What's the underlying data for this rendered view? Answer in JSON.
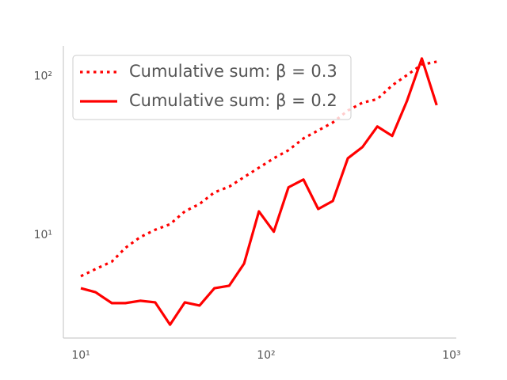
{
  "chart_data": {
    "type": "line",
    "xscale": "log",
    "yscale": "log",
    "grid": false,
    "legend": "upper left",
    "xlim": [
      8.05,
      1062
    ],
    "ylim": [
      2.24,
      156
    ],
    "xticks": [
      {
        "value": 10,
        "label": "10¹"
      },
      {
        "value": 100,
        "label": "10²"
      },
      {
        "value": 1000,
        "label": "10³"
      }
    ],
    "yticks": [
      {
        "value": 10,
        "label": "10¹"
      },
      {
        "value": 100,
        "label": "10²"
      }
    ],
    "x": [
      10,
      12.0,
      14.7,
      17.4,
      20.9,
      25.2,
      30.3,
      36.4,
      43.7,
      52.6,
      63.2,
      76.0,
      91.4,
      110,
      132,
      159,
      191,
      229,
      276,
      331,
      398,
      479,
      575,
      692,
      832
    ],
    "series": [
      {
        "name": "Cumulative sum: β = 0.3",
        "color": "#ff0000",
        "linestyle": "dotted",
        "values": [
          5.5,
          6.1,
          6.8,
          8.3,
          9.7,
          10.8,
          11.7,
          14.1,
          15.7,
          18.6,
          20.2,
          23.2,
          26.6,
          30.5,
          34.3,
          40.7,
          45.7,
          51.3,
          61,
          68.4,
          72,
          88,
          102,
          119,
          124
        ]
      },
      {
        "name": "Cumulative sum: β = 0.2",
        "color": "#ff0000",
        "linestyle": "solid",
        "values": [
          4.62,
          4.36,
          3.72,
          3.72,
          3.85,
          3.76,
          2.72,
          3.76,
          3.59,
          4.62,
          4.79,
          6.6,
          14.1,
          10.5,
          20,
          22.4,
          14.6,
          16.4,
          30.5,
          35.9,
          48.4,
          42.2,
          70,
          130,
          66
        ]
      }
    ]
  }
}
